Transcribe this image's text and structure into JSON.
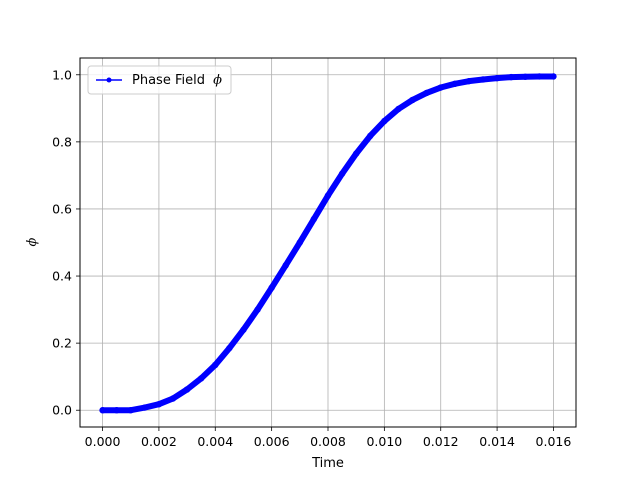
{
  "chart_data": {
    "type": "line",
    "title": "",
    "xlabel": "Time",
    "ylabel": "ϕ",
    "xlim": [
      -0.0008,
      0.0168
    ],
    "ylim": [
      -0.05,
      1.05
    ],
    "grid": true,
    "legend_position": "top-left",
    "x_ticks": [
      0.0,
      0.002,
      0.004,
      0.006,
      0.008,
      0.01,
      0.012,
      0.014,
      0.016
    ],
    "x_tick_labels": [
      "0.000",
      "0.002",
      "0.004",
      "0.006",
      "0.008",
      "0.010",
      "0.012",
      "0.014",
      "0.016"
    ],
    "y_ticks": [
      0.0,
      0.2,
      0.4,
      0.6,
      0.8,
      1.0
    ],
    "y_tick_labels": [
      "0.0",
      "0.2",
      "0.4",
      "0.6",
      "0.8",
      "1.0"
    ],
    "series": [
      {
        "name": "Phase Field",
        "name_symbol": "ϕ",
        "color": "#0000ff",
        "marker": "circle",
        "x": [
          0.0,
          0.0005,
          0.001,
          0.0015,
          0.002,
          0.0025,
          0.003,
          0.0035,
          0.004,
          0.0045,
          0.005,
          0.0055,
          0.006,
          0.0065,
          0.007,
          0.0075,
          0.008,
          0.0085,
          0.009,
          0.0095,
          0.01,
          0.0105,
          0.011,
          0.0115,
          0.012,
          0.0125,
          0.013,
          0.0135,
          0.014,
          0.0145,
          0.015,
          0.0155,
          0.016
        ],
        "y": [
          0.0,
          0.0,
          0.0,
          0.008,
          0.018,
          0.035,
          0.062,
          0.095,
          0.135,
          0.185,
          0.24,
          0.3,
          0.365,
          0.432,
          0.5,
          0.57,
          0.64,
          0.705,
          0.765,
          0.818,
          0.862,
          0.898,
          0.925,
          0.946,
          0.962,
          0.973,
          0.981,
          0.986,
          0.99,
          0.993,
          0.994,
          0.995,
          0.995
        ]
      }
    ]
  }
}
